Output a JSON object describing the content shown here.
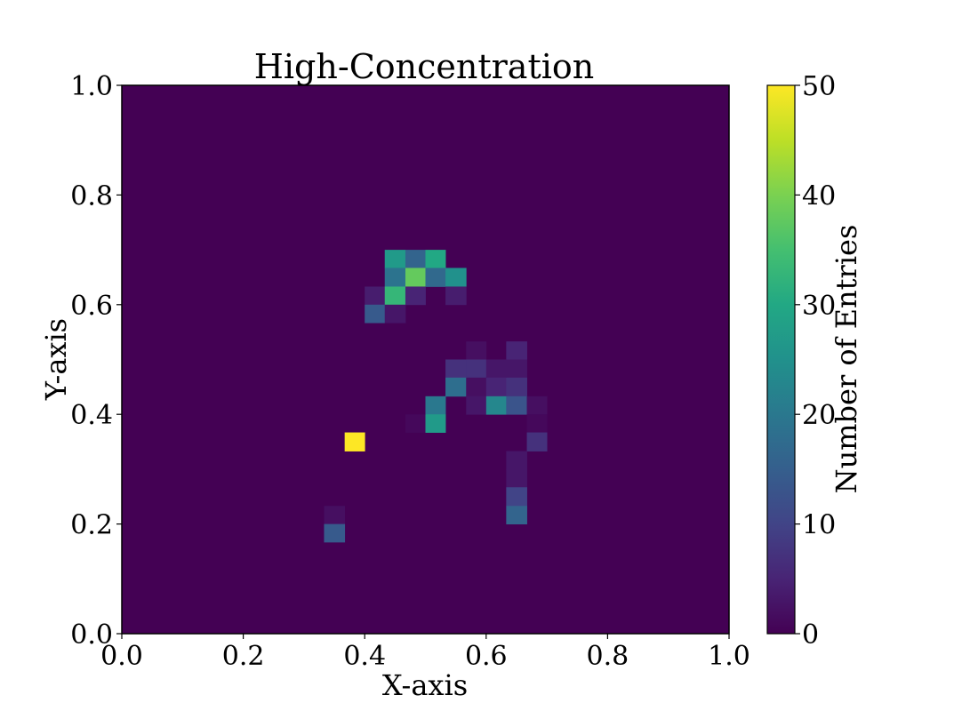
{
  "chart_data": {
    "type": "heatmap",
    "title": "High-Concentration",
    "xlabel": "X-axis",
    "ylabel": "Y-axis",
    "xlim": [
      0,
      1
    ],
    "ylim": [
      0,
      1
    ],
    "grid": false,
    "bins": 30,
    "x_ticks": [
      "0.0",
      "0.2",
      "0.4",
      "0.6",
      "0.8",
      "1.0"
    ],
    "y_ticks": [
      "0.0",
      "0.2",
      "0.4",
      "0.6",
      "0.8",
      "1.0"
    ],
    "colorbar": {
      "label": "Number of Entries",
      "min": 0,
      "max": 50,
      "ticks": [
        "0",
        "10",
        "20",
        "30",
        "40",
        "50"
      ],
      "colormap": "viridis"
    },
    "background_value": 0,
    "cells": [
      {
        "x0": 0.433,
        "x1": 0.467,
        "y0": 0.667,
        "y1": 0.7,
        "value": 27
      },
      {
        "x0": 0.467,
        "x1": 0.5,
        "y0": 0.667,
        "y1": 0.7,
        "value": 16
      },
      {
        "x0": 0.5,
        "x1": 0.533,
        "y0": 0.667,
        "y1": 0.7,
        "value": 30
      },
      {
        "x0": 0.433,
        "x1": 0.467,
        "y0": 0.633,
        "y1": 0.667,
        "value": 19
      },
      {
        "x0": 0.467,
        "x1": 0.5,
        "y0": 0.633,
        "y1": 0.667,
        "value": 38
      },
      {
        "x0": 0.5,
        "x1": 0.533,
        "y0": 0.633,
        "y1": 0.667,
        "value": 17
      },
      {
        "x0": 0.533,
        "x1": 0.567,
        "y0": 0.633,
        "y1": 0.667,
        "value": 25
      },
      {
        "x0": 0.4,
        "x1": 0.433,
        "y0": 0.6,
        "y1": 0.633,
        "value": 4
      },
      {
        "x0": 0.433,
        "x1": 0.467,
        "y0": 0.6,
        "y1": 0.633,
        "value": 33
      },
      {
        "x0": 0.467,
        "x1": 0.5,
        "y0": 0.6,
        "y1": 0.633,
        "value": 5
      },
      {
        "x0": 0.533,
        "x1": 0.567,
        "y0": 0.6,
        "y1": 0.633,
        "value": 4
      },
      {
        "x0": 0.4,
        "x1": 0.433,
        "y0": 0.567,
        "y1": 0.6,
        "value": 14
      },
      {
        "x0": 0.433,
        "x1": 0.467,
        "y0": 0.567,
        "y1": 0.6,
        "value": 3
      },
      {
        "x0": 0.567,
        "x1": 0.6,
        "y0": 0.5,
        "y1": 0.533,
        "value": 2
      },
      {
        "x0": 0.633,
        "x1": 0.667,
        "y0": 0.5,
        "y1": 0.533,
        "value": 5
      },
      {
        "x0": 0.533,
        "x1": 0.567,
        "y0": 0.467,
        "y1": 0.5,
        "value": 7
      },
      {
        "x0": 0.567,
        "x1": 0.6,
        "y0": 0.467,
        "y1": 0.5,
        "value": 7
      },
      {
        "x0": 0.6,
        "x1": 0.633,
        "y0": 0.467,
        "y1": 0.5,
        "value": 3
      },
      {
        "x0": 0.633,
        "x1": 0.667,
        "y0": 0.467,
        "y1": 0.5,
        "value": 3
      },
      {
        "x0": 0.533,
        "x1": 0.567,
        "y0": 0.433,
        "y1": 0.467,
        "value": 18
      },
      {
        "x0": 0.567,
        "x1": 0.6,
        "y0": 0.433,
        "y1": 0.467,
        "value": 2
      },
      {
        "x0": 0.6,
        "x1": 0.633,
        "y0": 0.433,
        "y1": 0.467,
        "value": 5
      },
      {
        "x0": 0.633,
        "x1": 0.667,
        "y0": 0.433,
        "y1": 0.467,
        "value": 7
      },
      {
        "x0": 0.5,
        "x1": 0.533,
        "y0": 0.4,
        "y1": 0.433,
        "value": 20
      },
      {
        "x0": 0.567,
        "x1": 0.6,
        "y0": 0.4,
        "y1": 0.433,
        "value": 3
      },
      {
        "x0": 0.6,
        "x1": 0.633,
        "y0": 0.4,
        "y1": 0.433,
        "value": 23
      },
      {
        "x0": 0.633,
        "x1": 0.667,
        "y0": 0.4,
        "y1": 0.433,
        "value": 13
      },
      {
        "x0": 0.667,
        "x1": 0.7,
        "y0": 0.4,
        "y1": 0.433,
        "value": 2
      },
      {
        "x0": 0.467,
        "x1": 0.5,
        "y0": 0.367,
        "y1": 0.4,
        "value": 1
      },
      {
        "x0": 0.5,
        "x1": 0.533,
        "y0": 0.367,
        "y1": 0.4,
        "value": 27
      },
      {
        "x0": 0.667,
        "x1": 0.7,
        "y0": 0.367,
        "y1": 0.4,
        "value": 1
      },
      {
        "x0": 0.367,
        "x1": 0.4,
        "y0": 0.333,
        "y1": 0.367,
        "value": 50
      },
      {
        "x0": 0.667,
        "x1": 0.7,
        "y0": 0.333,
        "y1": 0.367,
        "value": 7
      },
      {
        "x0": 0.633,
        "x1": 0.667,
        "y0": 0.3,
        "y1": 0.333,
        "value": 3
      },
      {
        "x0": 0.633,
        "x1": 0.667,
        "y0": 0.267,
        "y1": 0.3,
        "value": 3
      },
      {
        "x0": 0.633,
        "x1": 0.667,
        "y0": 0.233,
        "y1": 0.267,
        "value": 10
      },
      {
        "x0": 0.633,
        "x1": 0.667,
        "y0": 0.2,
        "y1": 0.233,
        "value": 16
      },
      {
        "x0": 0.333,
        "x1": 0.367,
        "y0": 0.2,
        "y1": 0.233,
        "value": 2
      },
      {
        "x0": 0.333,
        "x1": 0.367,
        "y0": 0.167,
        "y1": 0.2,
        "value": 14
      }
    ]
  }
}
